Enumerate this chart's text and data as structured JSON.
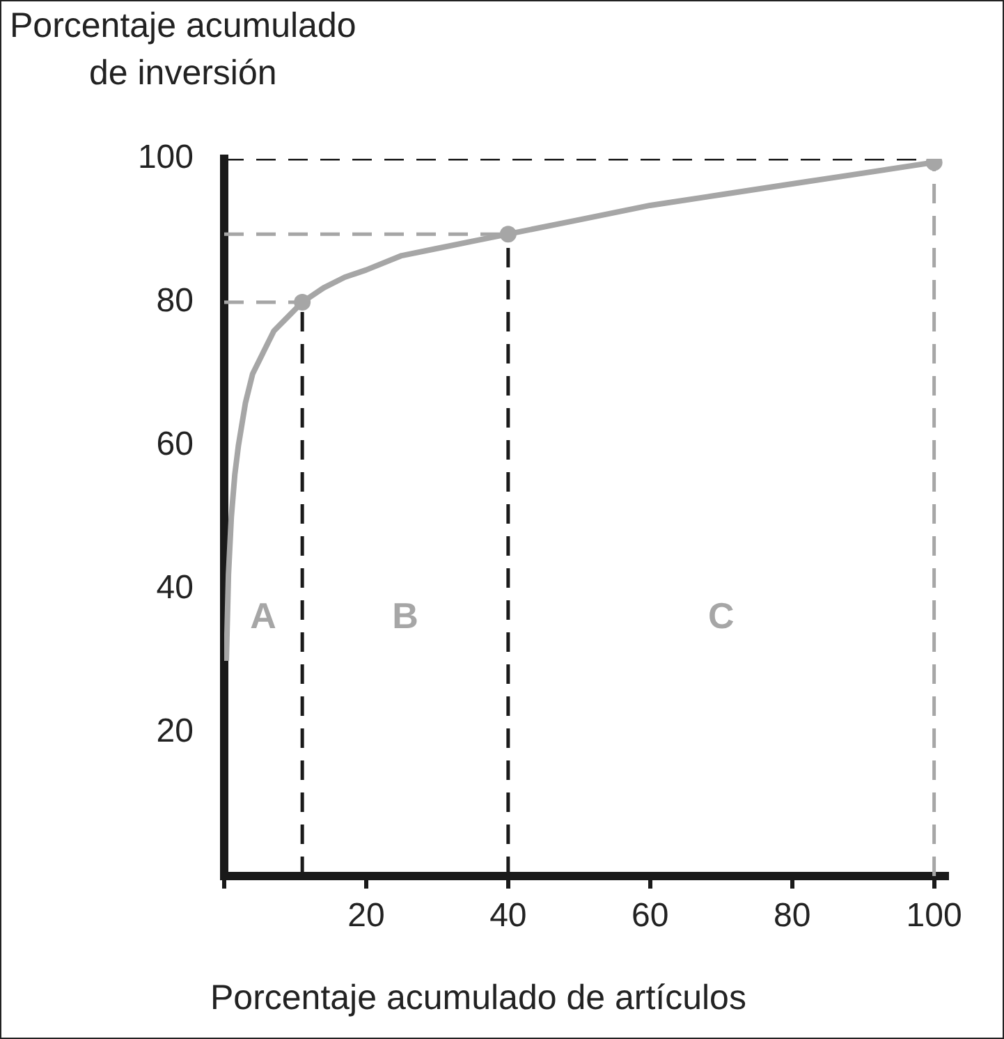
{
  "chart_data": {
    "type": "line",
    "ylabel": "Porcentaje acumulado\nde inversión",
    "xlabel": "Porcentaje acumulado de artículos",
    "xlim": [
      0,
      102
    ],
    "ylim": [
      0,
      100
    ],
    "xticks": [
      {
        "value": 0,
        "label": null
      },
      20,
      40,
      60,
      80,
      100
    ],
    "yticks": [
      20,
      40,
      60,
      80,
      100
    ],
    "grid": false,
    "legend": false,
    "series": [
      {
        "type": "line",
        "color": "#a6a6a6",
        "marker": "none",
        "x": [
          0.3,
          0.6,
          1,
          1.5,
          2,
          3,
          4,
          5.5,
          7,
          9,
          11,
          14,
          17,
          20,
          25,
          30,
          35,
          40,
          50,
          60,
          70,
          80,
          90,
          100
        ],
        "values": [
          30,
          42,
          50,
          56,
          60,
          66,
          70,
          73,
          76,
          78,
          80,
          82,
          83.5,
          84.5,
          86.5,
          87.5,
          88.5,
          89.5,
          91.5,
          93.5,
          95,
          96.5,
          98,
          99.5
        ]
      },
      {
        "type": "scatter",
        "color": "#a6a6a6",
        "marker": "circle",
        "x": [
          11,
          40,
          100
        ],
        "values": [
          80,
          89.5,
          99.5
        ]
      },
      {
        "type": "line",
        "color": "#a6a6a6",
        "line_style": "dashed",
        "marker": "none",
        "x": [
          0,
          11
        ],
        "values": [
          80,
          80
        ]
      },
      {
        "type": "line",
        "color": "#a6a6a6",
        "line_style": "dashed",
        "marker": "none",
        "x": [
          0,
          40
        ],
        "values": [
          89.5,
          89.5
        ]
      },
      {
        "type": "line",
        "color": "#1a1a1a",
        "line_style": "dashed",
        "marker": "none",
        "x": [
          0,
          100
        ],
        "values": [
          100,
          100
        ]
      },
      {
        "type": "line",
        "color": "#1a1a1a",
        "line_style": "dashed",
        "marker": "none",
        "x": [
          11,
          11
        ],
        "values": [
          0,
          80
        ]
      },
      {
        "type": "line",
        "color": "#1a1a1a",
        "line_style": "dashed",
        "marker": "none",
        "x": [
          40,
          40
        ],
        "values": [
          0,
          89.5
        ]
      },
      {
        "type": "line",
        "color": "#a6a6a6",
        "line_style": "dashed",
        "marker": "none",
        "x": [
          100,
          100
        ],
        "values": [
          0,
          99.5
        ]
      }
    ],
    "annotations": [
      "A",
      "B",
      "C"
    ]
  }
}
